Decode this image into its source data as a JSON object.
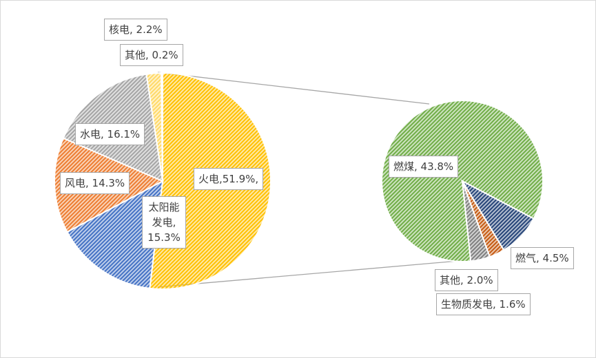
{
  "chart_data": [
    {
      "type": "pie",
      "values": [
        51.9,
        15.3,
        14.3,
        16.1,
        2.2,
        0.2
      ],
      "value_labels": [
        "火电,51.9%,",
        "太阳能发电, 15.3%",
        "风电, 14.3%",
        "水电, 16.1%",
        "核电, 2.2%",
        "其他, 0.2%"
      ],
      "colors": [
        "#ffc000",
        "#4472c4",
        "#ed7d31",
        "#a5a5a5",
        "#ffd966",
        "#5b9bd5"
      ]
    },
    {
      "type": "pie",
      "values": [
        43.8,
        4.5,
        1.6,
        2.0
      ],
      "value_labels": [
        "燃煤, 43.8%",
        "燃气, 4.5%",
        "生物质发电, 1.6%",
        "其他, 2.0%"
      ],
      "colors": [
        "#70ad47",
        "#264478",
        "#c55a11",
        "#7f7f7f"
      ]
    }
  ]
}
